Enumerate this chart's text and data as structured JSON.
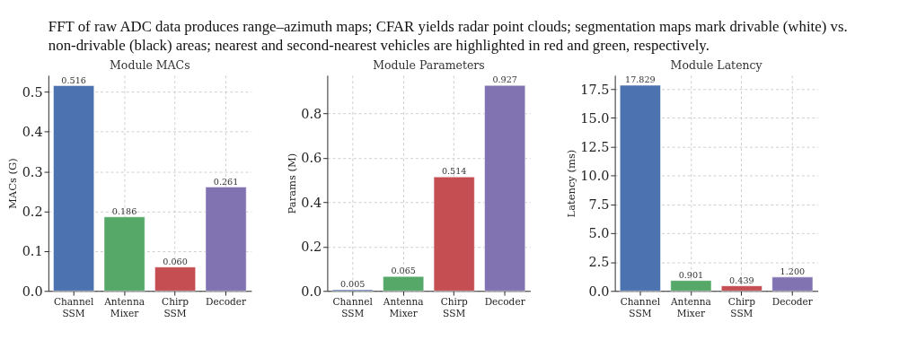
{
  "chart_data": [
    {
      "type": "bar",
      "title": "Module MACs",
      "ylabel": "MACs (G)",
      "annotations": [
        "FFT of raw ADC data produces range–azimuth maps; CFAR yields radar point clouds; segmentation maps mark drivable (white) vs.",
        "non-drivable (black) areas; nearest and second-nearest vehicles are highlighted in red and green, respectively."
      ],
      "categories": [
        "Channel SSM",
        "Antenna Mixer",
        "Chirp SSM",
        "Decoder"
      ],
      "values": [
        0.516,
        0.186,
        0.06,
        0.261
      ],
      "value_labels": [
        "0.516",
        "0.186",
        "0.060",
        "0.261"
      ],
      "colors": [
        "#4c72b0",
        "#55a868",
        "#c44e52",
        "#8172b2"
      ],
      "ylim": [
        0,
        0.542
      ],
      "yticks": [
        {
          "value": 0,
          "label": "0.0"
        },
        0.1,
        0.2,
        0.3,
        0.4,
        0.5
      ],
      "grid": true
    },
    {
      "type": "bar",
      "title": "Module Parameters",
      "ylabel": "Params (M)",
      "categories": [
        "Channel SSM",
        "Antenna Mixer",
        "Chirp SSM",
        "Decoder"
      ],
      "values": [
        0.005,
        0.065,
        0.514,
        0.927
      ],
      "value_labels": [
        "0.005",
        "0.065",
        "0.514",
        "0.927"
      ],
      "colors": [
        "#4c72b0",
        "#55a868",
        "#c44e52",
        "#8172b2"
      ],
      "ylim": [
        0,
        0.973
      ],
      "yticks": [
        {
          "value": 0,
          "label": "0.0"
        },
        0.2,
        0.4,
        0.6,
        0.8
      ],
      "grid": true
    },
    {
      "type": "bar",
      "title": "Module Latency",
      "ylabel": "Latency (ms)",
      "categories": [
        "Channel SSM",
        "Antenna Mixer",
        "Chirp SSM",
        "Decoder"
      ],
      "values": [
        17.829,
        0.901,
        0.439,
        1.2
      ],
      "value_labels": [
        "17.829",
        "0.901",
        "0.439",
        "1.200"
      ],
      "colors": [
        "#4c72b0",
        "#55a868",
        "#c44e52",
        "#8172b2"
      ],
      "ylim": [
        0,
        18.7
      ],
      "yticks": [
        {
          "value": 0,
          "label": "0.0"
        },
        2.5,
        {
          "value": 5,
          "label": "5.0"
        },
        7.5,
        {
          "value": 10,
          "label": "10.0"
        },
        12.5,
        {
          "value": 15,
          "label": "15.0"
        },
        17.5
      ],
      "grid": true
    }
  ]
}
